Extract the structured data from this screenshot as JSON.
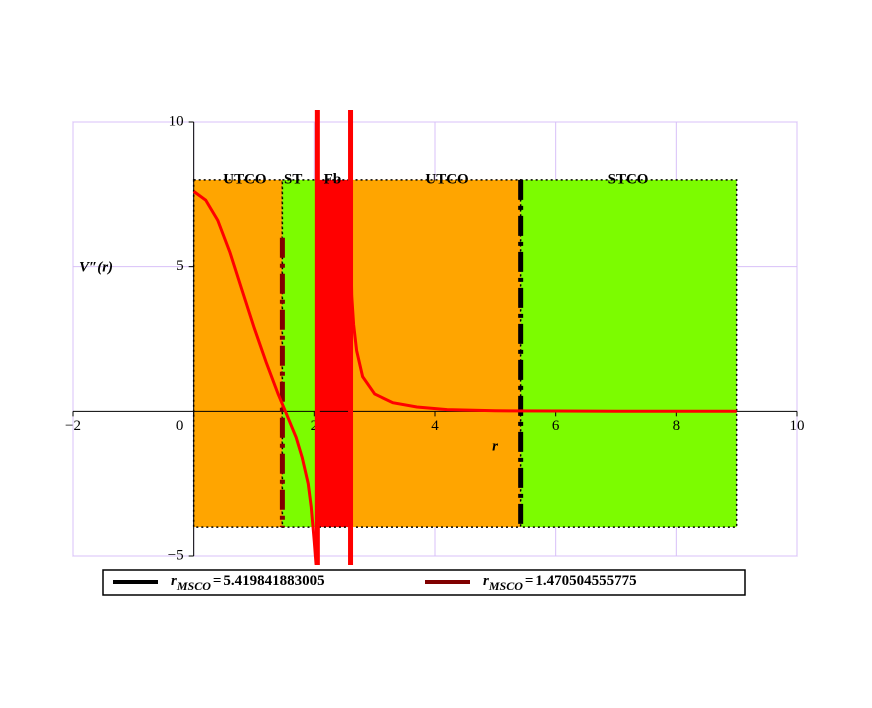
{
  "chart_data": {
    "type": "line",
    "x_label": "r",
    "y_label": "V″(r)",
    "xlim": [
      -2,
      10
    ],
    "ylim": [
      -5,
      10
    ],
    "xticks": [
      {
        "value": -2,
        "label": "−2"
      },
      0,
      2,
      4,
      6,
      8,
      10
    ],
    "yticks": [
      {
        "value": -5,
        "label": "−5"
      },
      5,
      10
    ],
    "grid": true,
    "regions": [
      {
        "label": "UTCO",
        "xlim": [
          0,
          1.4705
        ],
        "color": "#ffa500"
      },
      {
        "label": "ST",
        "xlim": [
          1.4705,
          2.05
        ],
        "color": "#7cfc00"
      },
      {
        "label": "Fb",
        "xlim": [
          2.05,
          2.6
        ],
        "color": "#ff0000"
      },
      {
        "label": "UTCO",
        "xlim": [
          2.6,
          5.4198
        ],
        "color": "#ffa500"
      },
      {
        "label": "STCO",
        "xlim": [
          5.4198,
          9
        ],
        "color": "#7cfc00"
      }
    ],
    "region_ylim": [
      -4,
      8
    ],
    "series": [
      {
        "color": "#ff0000",
        "x": [
          0,
          0.2,
          0.4,
          0.6,
          0.8,
          1.0,
          1.2,
          1.4,
          1.5,
          1.6,
          1.7,
          1.8,
          1.9,
          1.95,
          2.0,
          2.03,
          null,
          2.6,
          2.62,
          2.65,
          2.7,
          2.8,
          3.0,
          3.3,
          3.7,
          4.2,
          5,
          6,
          7,
          9
        ],
        "values": [
          7.6,
          7.3,
          6.6,
          5.5,
          4.2,
          2.9,
          1.7,
          0.6,
          0.1,
          -0.4,
          -0.9,
          -1.6,
          -2.5,
          -3.3,
          -4.5,
          -5.3,
          null,
          6,
          4,
          3,
          2.1,
          1.2,
          0.6,
          0.3,
          0.15,
          0.06,
          0.02,
          0.01,
          0,
          0
        ]
      }
    ],
    "vlines": [
      {
        "name": "r",
        "subscript": "MSCO",
        "operator": "=",
        "value": 5.419841883005,
        "color": "#000000"
      },
      {
        "name": "r",
        "subscript": "MSCO",
        "operator": "=",
        "value": 1.470504555775,
        "color": "#800000"
      }
    ]
  }
}
